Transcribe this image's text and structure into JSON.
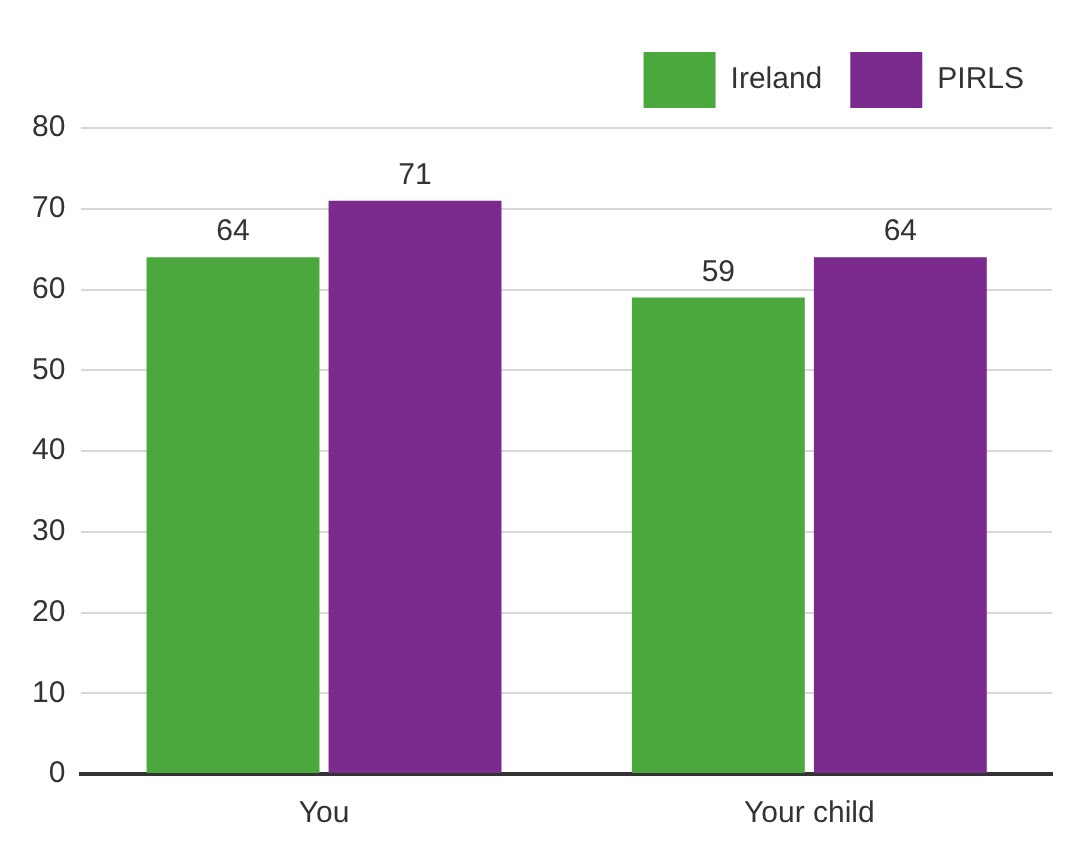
{
  "chart_data": {
    "type": "bar",
    "categories": [
      "You",
      "Your child"
    ],
    "series": [
      {
        "name": "Ireland",
        "color": "#4aa83c",
        "values": [
          64,
          59
        ]
      },
      {
        "name": "PIRLS",
        "color": "#7b2a8e",
        "values": [
          71,
          64
        ]
      }
    ],
    "ylim": [
      0,
      80
    ],
    "yticks": [
      0,
      10,
      20,
      30,
      40,
      50,
      60,
      70,
      80
    ],
    "grid": "y",
    "legend": "top right",
    "data_labels": true
  }
}
